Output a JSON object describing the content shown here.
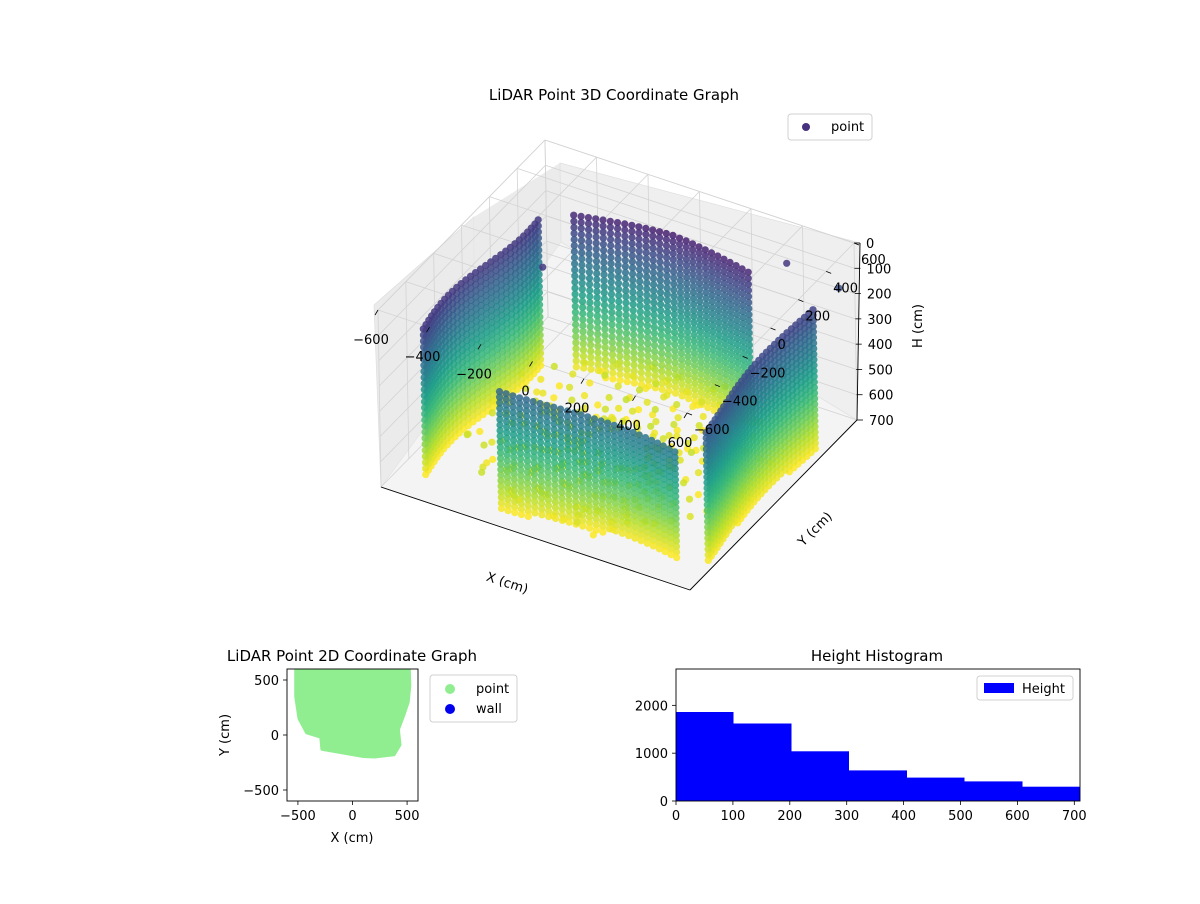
{
  "chart_data": [
    {
      "type": "scatter",
      "projection": "3d",
      "title": "LiDAR Point 3D Coordinate Graph",
      "xlabel": "X (cm)",
      "ylabel": "Y (cm)",
      "zlabel": "H (cm)",
      "xlim": [
        -600,
        600
      ],
      "ylim": [
        -600,
        600
      ],
      "zlim": [
        0,
        700
      ],
      "z_inverted": true,
      "x_ticks": [
        -600,
        -400,
        -200,
        0,
        200,
        400,
        600
      ],
      "y_ticks": [
        -600,
        -400,
        -200,
        0,
        200,
        400,
        600
      ],
      "z_ticks": [
        0,
        100,
        200,
        300,
        400,
        500,
        600,
        700
      ],
      "x_tick_labels": [
        "−600",
        "−400",
        "−200",
        "0",
        "200",
        "400",
        "600"
      ],
      "y_tick_labels": [
        "−600",
        "−400",
        "−200",
        "0",
        "200",
        "400",
        "600"
      ],
      "z_tick_labels": [
        "0",
        "100",
        "200",
        "300",
        "400",
        "500",
        "600",
        "700"
      ],
      "grid": true,
      "colormap": "viridis",
      "legend": {
        "placement": "top-right",
        "entries": [
          {
            "label": "point",
            "color": "#46327e"
          }
        ]
      }
    },
    {
      "type": "scatter",
      "title": "LiDAR Point 2D Coordinate Graph",
      "xlabel": "X (cm)",
      "ylabel": "Y (cm)",
      "xlim": [
        -600,
        600
      ],
      "ylim": [
        -600,
        600
      ],
      "x_ticks": [
        -500,
        0,
        500
      ],
      "y_ticks": [
        -500,
        0,
        500
      ],
      "x_tick_labels": [
        "−500",
        "0",
        "500"
      ],
      "y_tick_labels": [
        "−500",
        "0",
        "500"
      ],
      "series": [
        {
          "name": "point",
          "color": "#90ee90"
        },
        {
          "name": "wall",
          "color": "#0000ee"
        }
      ],
      "point_region_outline": [
        [
          -520,
          600
        ],
        [
          520,
          600
        ],
        [
          525,
          450
        ],
        [
          510,
          300
        ],
        [
          470,
          180
        ],
        [
          420,
          50
        ],
        [
          435,
          -90
        ],
        [
          380,
          -180
        ],
        [
          200,
          -200
        ],
        [
          100,
          -195
        ],
        [
          -280,
          -130
        ],
        [
          -290,
          -20
        ],
        [
          -420,
          20
        ],
        [
          -490,
          150
        ],
        [
          -520,
          350
        ]
      ],
      "legend": {
        "placement": "outside-right"
      }
    },
    {
      "type": "bar",
      "subtype": "histogram",
      "title": "Height Histogram",
      "series": [
        {
          "name": "Height",
          "color": "#0000ff"
        }
      ],
      "bin_edges": [
        0,
        101,
        203,
        304,
        406,
        507,
        609,
        710
      ],
      "counts": [
        1860,
        1620,
        1040,
        640,
        490,
        410,
        300
      ],
      "xlim": [
        0,
        710
      ],
      "ylim": [
        0,
        2760
      ],
      "x_ticks": [
        0,
        100,
        200,
        300,
        400,
        500,
        600,
        700
      ],
      "y_ticks": [
        0,
        1000,
        2000
      ],
      "x_tick_labels": [
        "0",
        "100",
        "200",
        "300",
        "400",
        "500",
        "600",
        "700"
      ],
      "y_tick_labels": [
        "0",
        "1000",
        "2000"
      ],
      "legend": {
        "placement": "top-right"
      }
    }
  ]
}
